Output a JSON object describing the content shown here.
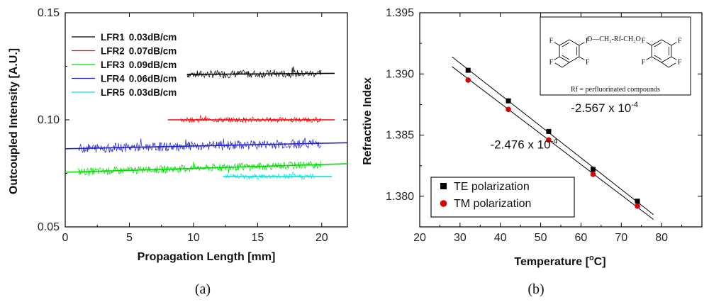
{
  "chart_data": [
    {
      "type": "line",
      "panel": "(a)",
      "xlabel": "Propagation Length [mm]",
      "ylabel": "Outcoupled Intensity [A.U.]",
      "xlim": [
        0,
        22
      ],
      "ylim": [
        0.05,
        0.15
      ],
      "xticks": [
        0,
        5,
        10,
        15,
        20
      ],
      "yticks": [
        "0.05",
        "0.10",
        "0.15"
      ],
      "legend_position": "top-left",
      "series": [
        {
          "name": "LFR1",
          "loss": "0.03dB/cm",
          "color": "#000000",
          "x_range": [
            9.5,
            20
          ],
          "fit": [
            [
              9.5,
              0.1212
            ],
            [
              21,
              0.1217
            ]
          ],
          "noise": 0.0018
        },
        {
          "name": "LFR2",
          "loss": "0.07dB/cm",
          "color": "#ff0000",
          "x_range": [
            9,
            20
          ],
          "fit": [
            [
              8,
              0.1
            ],
            [
              21,
              0.1
            ]
          ],
          "noise": 0.0012
        },
        {
          "name": "LFR3",
          "loss": "0.09dB/cm",
          "color": "#00dd00",
          "x_range": [
            1,
            20
          ],
          "fit": [
            [
              0,
              0.0755
            ],
            [
              22,
              0.0795
            ]
          ],
          "noise": 0.0018
        },
        {
          "name": "LFR4",
          "loss": "0.06dB/cm",
          "color": "#2222cc",
          "x_range": [
            1,
            20
          ],
          "fit": [
            [
              0,
              0.0865
            ],
            [
              22,
              0.0893
            ]
          ],
          "noise": 0.0022
        },
        {
          "name": "LFR5",
          "loss": "0.03dB/cm",
          "color": "#00e5e5",
          "x_range": [
            12.5,
            19.5
          ],
          "fit": [
            [
              12.3,
              0.0735
            ],
            [
              20.8,
              0.0735
            ]
          ],
          "noise": 0.0013
        }
      ]
    },
    {
      "type": "scatter",
      "panel": "(b)",
      "xlabel": "Temperature [",
      "xlabel_unit": "o",
      "xlabel_tail": "C]",
      "ylabel": "Refractive Index",
      "xlim": [
        20,
        90
      ],
      "ylim": [
        1.3775,
        1.395
      ],
      "xticks": [
        20,
        30,
        40,
        50,
        60,
        70,
        80
      ],
      "yticks": [
        "1.380",
        "1.385",
        "1.390",
        "1.395"
      ],
      "legend_position": "bottom-left",
      "series": [
        {
          "name": "TE polarization",
          "marker": "square",
          "color": "#000000",
          "x": [
            32,
            42,
            52,
            63,
            74
          ],
          "y": [
            1.3903,
            1.3878,
            1.3853,
            1.3822,
            1.3796
          ],
          "fit": [
            [
              28,
              1.3914
            ],
            [
              78,
              1.3785
            ]
          ]
        },
        {
          "name": "TM polarization",
          "marker": "circle",
          "color": "#dd0000",
          "x": [
            32,
            42,
            52,
            63,
            74
          ],
          "y": [
            1.3895,
            1.3871,
            1.3846,
            1.3818,
            1.3792
          ],
          "fit": [
            [
              28,
              1.3906
            ],
            [
              78,
              1.3781
            ]
          ]
        }
      ],
      "annotations": [
        {
          "text": "-2.567 x 10",
          "exp": "-4",
          "x": 57.5,
          "y": 1.3869
        },
        {
          "text": "-2.476 x 10",
          "exp": "-4",
          "x": 37.5,
          "y": 1.3839
        }
      ],
      "inset": {
        "structure": "O—CH₂-Rf-CH₂O",
        "substituent": "F",
        "caption": "Rf = perfluorinated compounds"
      }
    }
  ],
  "captions": [
    "(a)",
    "(b)"
  ]
}
